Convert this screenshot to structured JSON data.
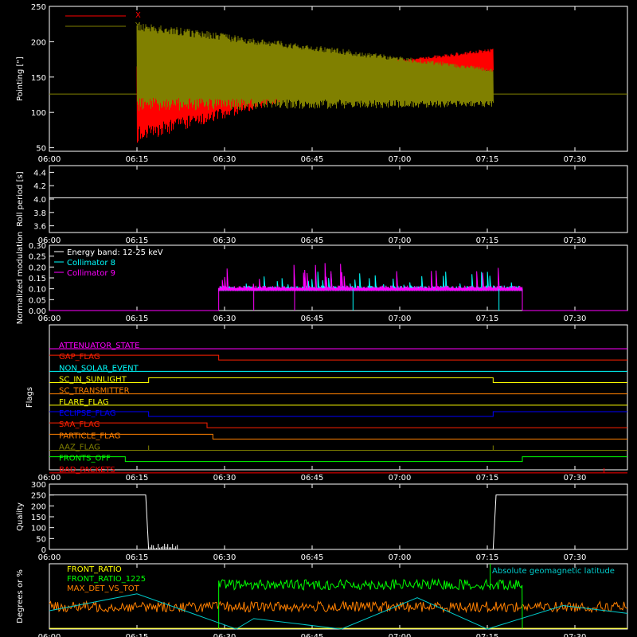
{
  "time_ticks": [
    "06:00",
    "06:15",
    "06:30",
    "06:45",
    "07:00",
    "07:15",
    "07:30"
  ],
  "colors": {
    "x": "#ff0000",
    "y": "#808000",
    "roll": "#ffffff",
    "energy": "#ffffff",
    "coll8": "#00ffff",
    "coll9": "#ff00ff",
    "front_ratio": "#ffff00",
    "front_ratio_1225": "#00ff00",
    "max_det": "#ff8000",
    "geomag": "#00cccc"
  },
  "chart_data": [
    {
      "type": "line",
      "ylabel": "Pointing [\"]",
      "ylim": [
        45,
        250
      ],
      "yticks": [
        50,
        100,
        150,
        200,
        250
      ],
      "xlim": [
        "06:00",
        "07:39"
      ],
      "legend": [
        "X",
        "Y"
      ],
      "series": [
        {
          "name": "X",
          "note_range": "oscillating 50-205 from 06:15 to 07:16, ~170 late",
          "center": [
            125,
            128,
            130,
            135,
            145,
            165,
            172,
            172,
            125
          ]
        },
        {
          "name": "Y",
          "center": [
            125,
            170,
            165,
            160,
            150,
            140,
            135,
            135,
            125
          ]
        }
      ],
      "x": [
        "06:00",
        "06:15",
        "06:25",
        "06:35",
        "06:45",
        "06:55",
        "07:05",
        "07:16",
        "07:39"
      ]
    },
    {
      "type": "line",
      "ylabel": "Roll period [s]",
      "ylim": [
        3.5,
        4.5
      ],
      "yticks": [
        3.6,
        3.8,
        4.0,
        4.2,
        4.4
      ],
      "x": [
        "06:00",
        "07:39"
      ],
      "values": [
        4.02,
        4.02
      ]
    },
    {
      "type": "line",
      "ylabel": "Normalized modulation",
      "ylim": [
        0,
        0.3
      ],
      "yticks": [
        0.0,
        0.05,
        0.1,
        0.15,
        0.2,
        0.25,
        0.3
      ],
      "legend": [
        "Energy band: 12-25 keV",
        "Collimator 8",
        "Collimator 9"
      ],
      "active_range": [
        "06:29",
        "07:21"
      ],
      "baseline": 0.1
    },
    {
      "type": "table",
      "ylabel": "Flags",
      "flags": [
        {
          "name": "ATTENUATOR_STATE",
          "color": "#ff00ff",
          "x": [
            "06:00",
            "07:39"
          ],
          "states": [
            0
          ]
        },
        {
          "name": "GAP_FLAG",
          "color": "#ff2000",
          "x": [
            "06:00",
            "06:29",
            "07:39"
          ],
          "states": [
            1,
            0
          ]
        },
        {
          "name": "NON_SOLAR_EVENT",
          "color": "#00ffff",
          "x": [
            "06:00",
            "07:39"
          ],
          "states": [
            0
          ]
        },
        {
          "name": "SC_IN_SUNLIGHT",
          "color": "#ffff00",
          "x": [
            "06:00",
            "06:17",
            "07:16",
            "07:39"
          ],
          "states": [
            0,
            1,
            0
          ]
        },
        {
          "name": "SC_TRANSMITTER",
          "color": "#ff8000",
          "x": [
            "06:00",
            "07:39"
          ],
          "states": [
            0
          ]
        },
        {
          "name": "FLARE_FLAG",
          "color": "#ffff00",
          "x": [
            "06:00",
            "07:39"
          ],
          "states": [
            0
          ]
        },
        {
          "name": "ECLIPSE_FLAG",
          "color": "#0000ff",
          "x": [
            "06:00",
            "06:17",
            "07:16",
            "07:39"
          ],
          "states": [
            1,
            0,
            1
          ]
        },
        {
          "name": "SAA_FLAG",
          "color": "#ff2000",
          "x": [
            "06:00",
            "06:27",
            "07:39"
          ],
          "states": [
            1,
            0
          ]
        },
        {
          "name": "PARTICLE_FLAG",
          "color": "#ff8000",
          "x": [
            "06:00",
            "06:28",
            "07:39"
          ],
          "states": [
            1,
            0
          ]
        },
        {
          "name": "AAZ_FLAG",
          "color": "#808000",
          "x": [
            "06:00",
            "07:39"
          ],
          "states": [
            0
          ],
          "spikes": [
            "06:17",
            "07:16"
          ]
        },
        {
          "name": "FRONTS_OFF",
          "color": "#00ff00",
          "x": [
            "06:00",
            "06:13",
            "07:21",
            "07:39"
          ],
          "states": [
            1,
            0,
            1
          ]
        },
        {
          "name": "BAD_PACKETS",
          "color": "#ff0000",
          "x": [
            "06:00",
            "07:39"
          ],
          "states": [
            0
          ],
          "spikes": [
            "07:35"
          ]
        }
      ]
    },
    {
      "type": "line",
      "ylabel": "Quality",
      "ylim": [
        0,
        300
      ],
      "yticks": [
        0,
        50,
        100,
        150,
        200,
        250,
        300
      ],
      "x": [
        "06:00",
        "06:16.5",
        "06:17",
        "07:16",
        "07:16.5",
        "07:39"
      ],
      "values": [
        250,
        250,
        0,
        0,
        250,
        250
      ]
    },
    {
      "type": "line",
      "ylabel": "Degrees or %",
      "ylim": [
        0,
        50
      ],
      "legend": [
        "FRONT_RATIO",
        "FRONT_RATIO_1225",
        "MAX_DET_VS_TOT",
        "Absolute geomagnetic latitude"
      ],
      "series": [
        {
          "name": "FRONT_RATIO",
          "level": 0
        },
        {
          "name": "FRONT_RATIO_1225",
          "level": 33,
          "range": [
            "06:29",
            "07:21"
          ]
        },
        {
          "name": "MAX_DET_VS_TOT",
          "level": 14,
          "range": [
            "06:00",
            "07:39"
          ]
        },
        {
          "name": "Absolute geomagnetic latitude",
          "x": [
            "06:00",
            "06:15",
            "06:32",
            "06:35",
            "06:50",
            "07:03",
            "07:15",
            "07:28",
            "07:39"
          ],
          "values": [
            14,
            27,
            0,
            8,
            0,
            24,
            0,
            18,
            12
          ]
        }
      ]
    }
  ]
}
